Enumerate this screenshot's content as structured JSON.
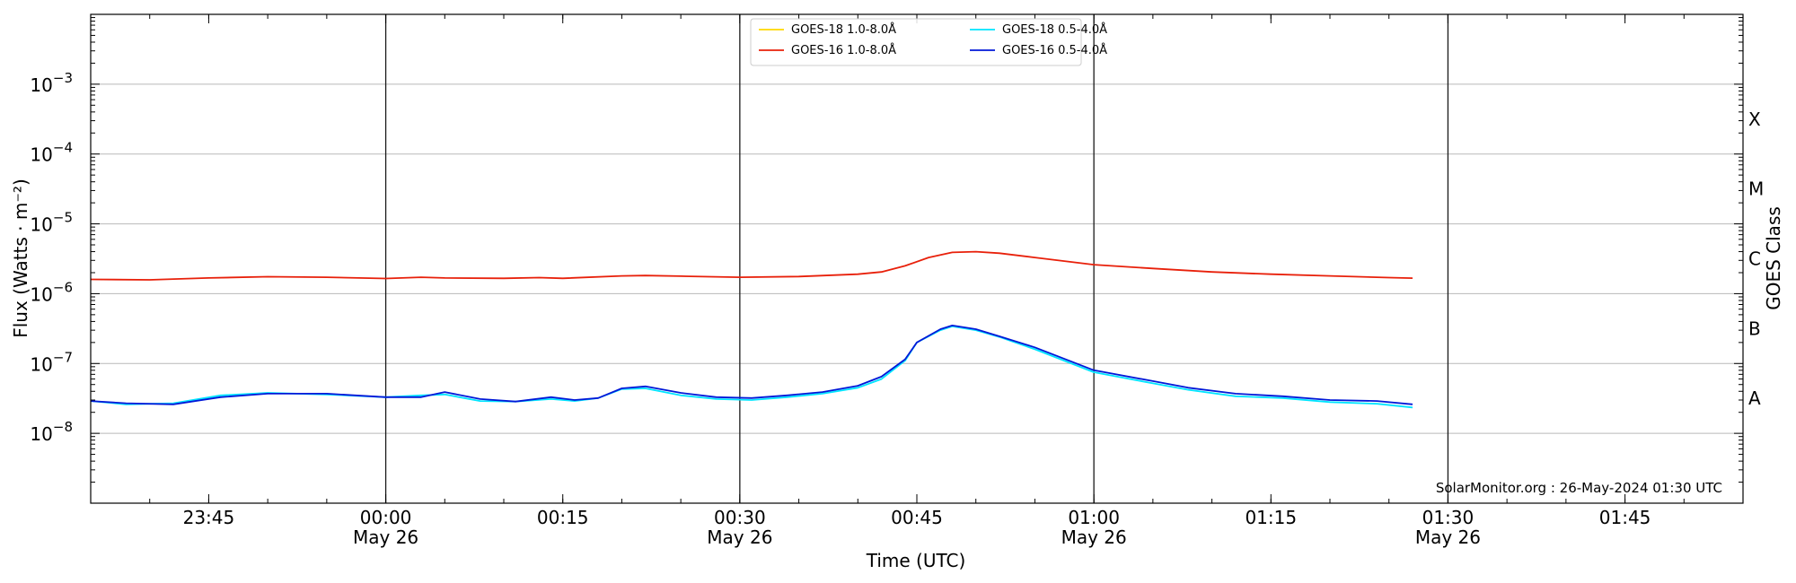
{
  "chart_data": {
    "type": "line",
    "ylabel": "Flux (Watts · m⁻²)",
    "xlabel": "Time (UTC)",
    "right_axis_label": "GOES Class",
    "credit": "SolarMonitor.org : 26-May-2024 01:30 UTC",
    "y_scale": "log",
    "ylim": [
      1e-09,
      0.01
    ],
    "xlim": [
      "2024-05-25T23:35",
      "2024-05-26T01:55"
    ],
    "grid": "horizontal at decades",
    "legend_placement": "top-center",
    "y_ticks": [
      {
        "value": 1e-08,
        "base": "10",
        "exp": "−8"
      },
      {
        "value": 1e-07,
        "base": "10",
        "exp": "−7"
      },
      {
        "value": 1e-06,
        "base": "10",
        "exp": "−6"
      },
      {
        "value": 1e-05,
        "base": "10",
        "exp": "−5"
      },
      {
        "value": 0.0001,
        "base": "10",
        "exp": "−4"
      },
      {
        "value": 0.001,
        "base": "10",
        "exp": "−3"
      }
    ],
    "goes_classes": [
      {
        "label": "A",
        "value": 3.162e-08
      },
      {
        "label": "B",
        "value": 3.162e-07
      },
      {
        "label": "C",
        "value": 3.162e-06
      },
      {
        "label": "M",
        "value": 3.162e-05
      },
      {
        "label": "X",
        "value": 0.0003162
      }
    ],
    "x_ticks": [
      {
        "time": "2024-05-25T23:45",
        "label": "23:45",
        "date": ""
      },
      {
        "time": "2024-05-26T00:00",
        "label": "00:00",
        "date": "May 26"
      },
      {
        "time": "2024-05-26T00:15",
        "label": "00:15",
        "date": ""
      },
      {
        "time": "2024-05-26T00:30",
        "label": "00:30",
        "date": "May 26"
      },
      {
        "time": "2024-05-26T00:45",
        "label": "00:45",
        "date": ""
      },
      {
        "time": "2024-05-26T01:00",
        "label": "01:00",
        "date": "May 26"
      },
      {
        "time": "2024-05-26T01:15",
        "label": "01:15",
        "date": ""
      },
      {
        "time": "2024-05-26T01:30",
        "label": "01:30",
        "date": "May 26"
      },
      {
        "time": "2024-05-26T01:45",
        "label": "01:45",
        "date": ""
      }
    ],
    "series": [
      {
        "name": "GOES-18 1.0-8.0Å",
        "color": "#ffd700",
        "x": [],
        "values": []
      },
      {
        "name": "GOES-16 1.0-8.0Å",
        "color": "#e8200a",
        "x": [
          "2024-05-25T23:35",
          "2024-05-25T23:40",
          "2024-05-25T23:45",
          "2024-05-25T23:50",
          "2024-05-25T23:55",
          "2024-05-26T00:00",
          "2024-05-26T00:03",
          "2024-05-26T00:05",
          "2024-05-26T00:10",
          "2024-05-26T00:13",
          "2024-05-26T00:15",
          "2024-05-26T00:20",
          "2024-05-26T00:22",
          "2024-05-26T00:25",
          "2024-05-26T00:30",
          "2024-05-26T00:35",
          "2024-05-26T00:40",
          "2024-05-26T00:42",
          "2024-05-26T00:44",
          "2024-05-26T00:46",
          "2024-05-26T00:48",
          "2024-05-26T00:50",
          "2024-05-26T00:52",
          "2024-05-26T00:55",
          "2024-05-26T01:00",
          "2024-05-26T01:05",
          "2024-05-26T01:10",
          "2024-05-26T01:15",
          "2024-05-26T01:20",
          "2024-05-26T01:25",
          "2024-05-26T01:27"
        ],
        "values": [
          1.6e-06,
          1.58e-06,
          1.68e-06,
          1.75e-06,
          1.72e-06,
          1.65e-06,
          1.72e-06,
          1.68e-06,
          1.66e-06,
          1.7e-06,
          1.66e-06,
          1.8e-06,
          1.82e-06,
          1.78e-06,
          1.72e-06,
          1.76e-06,
          1.9e-06,
          2.05e-06,
          2.5e-06,
          3.3e-06,
          3.9e-06,
          4e-06,
          3.8e-06,
          3.3e-06,
          2.6e-06,
          2.3e-06,
          2.05e-06,
          1.9e-06,
          1.8e-06,
          1.7e-06,
          1.67e-06
        ]
      },
      {
        "name": "GOES-18 0.5-4.0Å",
        "color": "#00e5ff",
        "x": [
          "2024-05-25T23:35",
          "2024-05-25T23:38",
          "2024-05-25T23:42",
          "2024-05-25T23:46",
          "2024-05-25T23:50",
          "2024-05-25T23:55",
          "2024-05-26T00:00",
          "2024-05-26T00:03",
          "2024-05-26T00:05",
          "2024-05-26T00:08",
          "2024-05-26T00:11",
          "2024-05-26T00:14",
          "2024-05-26T00:16",
          "2024-05-26T00:18",
          "2024-05-26T00:20",
          "2024-05-26T00:22",
          "2024-05-26T00:25",
          "2024-05-26T00:28",
          "2024-05-26T00:31",
          "2024-05-26T00:34",
          "2024-05-26T00:37",
          "2024-05-26T00:40",
          "2024-05-26T00:42",
          "2024-05-26T00:44",
          "2024-05-26T00:45",
          "2024-05-26T00:47",
          "2024-05-26T00:48",
          "2024-05-26T00:50",
          "2024-05-26T00:52",
          "2024-05-26T00:55",
          "2024-05-26T01:00",
          "2024-05-26T01:05",
          "2024-05-26T01:08",
          "2024-05-26T01:12",
          "2024-05-26T01:16",
          "2024-05-26T01:20",
          "2024-05-26T01:24",
          "2024-05-26T01:27"
        ],
        "values": [
          2.9e-08,
          2.6e-08,
          2.7e-08,
          3.5e-08,
          3.8e-08,
          3.6e-08,
          3.3e-08,
          3.5e-08,
          3.6e-08,
          2.9e-08,
          2.85e-08,
          3.1e-08,
          2.9e-08,
          3.2e-08,
          4.3e-08,
          4.4e-08,
          3.5e-08,
          3.1e-08,
          3e-08,
          3.3e-08,
          3.7e-08,
          4.5e-08,
          6e-08,
          1.1e-07,
          2e-07,
          3e-07,
          3.4e-07,
          3e-07,
          2.4e-07,
          1.6e-07,
          7.5e-08,
          5.2e-08,
          4.2e-08,
          3.4e-08,
          3.2e-08,
          2.8e-08,
          2.65e-08,
          2.35e-08
        ]
      },
      {
        "name": "GOES-16 0.5-4.0Å",
        "color": "#0018d8",
        "x": [
          "2024-05-25T23:35",
          "2024-05-25T23:38",
          "2024-05-25T23:42",
          "2024-05-25T23:46",
          "2024-05-25T23:50",
          "2024-05-25T23:55",
          "2024-05-26T00:00",
          "2024-05-26T00:03",
          "2024-05-26T00:05",
          "2024-05-26T00:08",
          "2024-05-26T00:11",
          "2024-05-26T00:14",
          "2024-05-26T00:16",
          "2024-05-26T00:18",
          "2024-05-26T00:20",
          "2024-05-26T00:22",
          "2024-05-26T00:25",
          "2024-05-26T00:28",
          "2024-05-26T00:31",
          "2024-05-26T00:34",
          "2024-05-26T00:37",
          "2024-05-26T00:40",
          "2024-05-26T00:42",
          "2024-05-26T00:44",
          "2024-05-26T00:45",
          "2024-05-26T00:47",
          "2024-05-26T00:48",
          "2024-05-26T00:50",
          "2024-05-26T00:52",
          "2024-05-26T00:55",
          "2024-05-26T01:00",
          "2024-05-26T01:05",
          "2024-05-26T01:08",
          "2024-05-26T01:12",
          "2024-05-26T01:16",
          "2024-05-26T01:20",
          "2024-05-26T01:24",
          "2024-05-26T01:27"
        ],
        "values": [
          2.9e-08,
          2.7e-08,
          2.6e-08,
          3.3e-08,
          3.7e-08,
          3.7e-08,
          3.3e-08,
          3.3e-08,
          3.9e-08,
          3.1e-08,
          2.85e-08,
          3.3e-08,
          3e-08,
          3.2e-08,
          4.4e-08,
          4.7e-08,
          3.8e-08,
          3.3e-08,
          3.2e-08,
          3.5e-08,
          3.9e-08,
          4.8e-08,
          6.5e-08,
          1.15e-07,
          2e-07,
          3.1e-07,
          3.5e-07,
          3.1e-07,
          2.45e-07,
          1.7e-07,
          8e-08,
          5.6e-08,
          4.5e-08,
          3.7e-08,
          3.4e-08,
          3e-08,
          2.9e-08,
          2.6e-08
        ]
      }
    ]
  }
}
